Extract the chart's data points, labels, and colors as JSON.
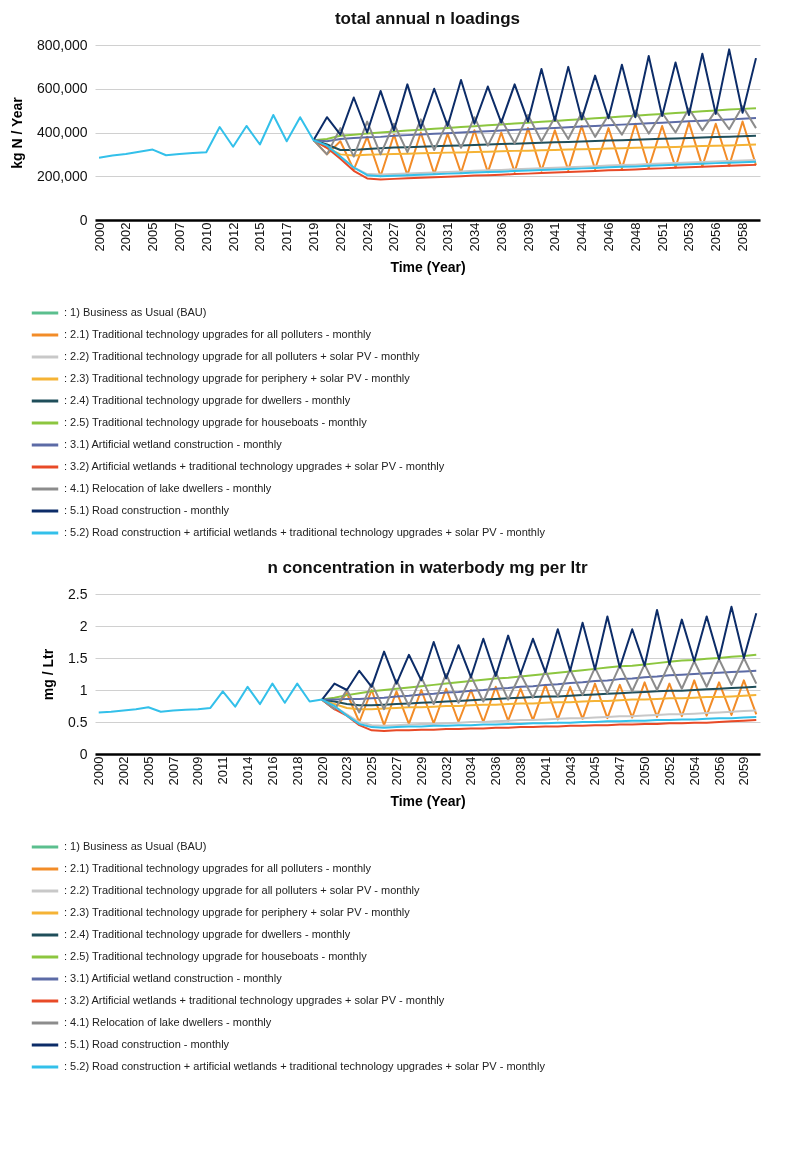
{
  "chart_data": [
    {
      "type": "line",
      "title": "total annual n loadings",
      "xlabel": "Time (Year)",
      "ylabel": "kg N / Year",
      "legend": "bottom",
      "grid": "y",
      "categories": [
        "2000",
        null,
        "2002",
        null,
        "2005",
        null,
        "2007",
        null,
        "2010",
        null,
        "2012",
        null,
        "2015",
        null,
        "2017",
        null,
        "2019",
        null,
        "2022",
        null,
        "2024",
        null,
        "2027",
        null,
        "2029",
        null,
        "2031",
        null,
        "2034",
        null,
        "2036",
        null,
        "2039",
        null,
        "2041",
        null,
        "2044",
        null,
        "2046",
        null,
        "2048",
        null,
        "2051",
        null,
        "2053",
        null,
        "2056",
        null,
        "2058",
        null
      ],
      "ylim": [
        0,
        800000
      ],
      "yticks": [
        {
          "value": 0,
          "label": "0"
        },
        {
          "value": 200000,
          "label": "200,000"
        },
        {
          "value": 400000,
          "label": "400,000"
        },
        {
          "value": 600000,
          "label": "600,000"
        },
        {
          "value": 800000,
          "label": "800,000"
        }
      ],
      "series": [
        {
          "name": ": 1) Business as Usual (BAU)",
          "color": "#5bbf8e",
          "values": [
            null,
            null,
            null,
            null,
            null,
            null,
            null,
            null,
            null,
            null,
            null,
            null,
            null,
            null,
            null,
            null,
            null,
            null,
            null,
            null,
            null,
            null,
            null,
            null,
            null,
            null,
            null,
            null,
            null,
            null,
            null,
            null,
            null,
            null,
            null,
            null,
            null,
            null,
            null,
            null,
            null,
            null,
            null,
            null,
            null,
            null,
            null,
            null,
            null,
            null
          ]
        },
        {
          "name": ": 2.1) Traditional technology upgrades for all polluters - monthly",
          "color": "#f28c28",
          "values": [
            null,
            null,
            null,
            null,
            null,
            null,
            null,
            null,
            null,
            null,
            null,
            null,
            null,
            null,
            null,
            null,
            365000,
            300000,
            360000,
            230000,
            380000,
            200000,
            390000,
            205000,
            400000,
            210000,
            395000,
            215000,
            410000,
            218000,
            400000,
            220000,
            420000,
            225000,
            410000,
            228000,
            430000,
            232000,
            420000,
            235000,
            440000,
            238000,
            430000,
            240000,
            445000,
            245000,
            440000,
            248000,
            450000,
            250000
          ]
        },
        {
          "name": ": 2.2) Traditional technology upgrade for all polluters + solar PV - monthly",
          "color": "#c8c8c8",
          "values": [
            null,
            null,
            null,
            null,
            null,
            null,
            null,
            null,
            null,
            null,
            null,
            null,
            null,
            null,
            null,
            null,
            365000,
            335000,
            290000,
            240000,
            210000,
            208000,
            210000,
            213000,
            215000,
            217000,
            220000,
            222000,
            225000,
            227000,
            229000,
            232000,
            234000,
            237000,
            239000,
            241000,
            244000,
            246000,
            249000,
            251000,
            253000,
            256000,
            258000,
            261000,
            263000,
            265000,
            268000,
            270000,
            272000,
            274000
          ]
        },
        {
          "name": ": 2.3) Traditional technology upgrade for periphery + solar PV - monthly",
          "color": "#f5b335",
          "values": [
            null,
            null,
            null,
            null,
            null,
            null,
            null,
            null,
            null,
            null,
            null,
            null,
            null,
            null,
            null,
            null,
            365000,
            330000,
            300000,
            295000,
            298000,
            300000,
            302000,
            303000,
            305000,
            306000,
            308000,
            309000,
            311000,
            312000,
            314000,
            316000,
            317000,
            319000,
            320000,
            322000,
            323000,
            325000,
            327000,
            328000,
            330000,
            331000,
            333000,
            334000,
            336000,
            338000,
            339000,
            341000,
            343000,
            345000
          ]
        },
        {
          "name": ": 2.4) Traditional technology upgrade for dwellers - monthly",
          "color": "#1f4e5a",
          "values": [
            null,
            null,
            null,
            null,
            null,
            null,
            null,
            null,
            null,
            null,
            null,
            null,
            null,
            null,
            null,
            null,
            365000,
            345000,
            320000,
            320000,
            325000,
            328000,
            331000,
            333000,
            335000,
            337000,
            339000,
            341000,
            343000,
            345000,
            347000,
            349000,
            351000,
            353000,
            355000,
            357000,
            359000,
            361000,
            363000,
            365000,
            367000,
            369000,
            371000,
            373000,
            375000,
            377000,
            379000,
            381000,
            383000,
            385000
          ]
        },
        {
          "name": ": 2.5) Traditional technology upgrade for houseboats - monthly",
          "color": "#8cc63f",
          "values": [
            null,
            null,
            null,
            null,
            null,
            null,
            null,
            null,
            null,
            null,
            null,
            null,
            null,
            null,
            null,
            null,
            365000,
            370000,
            385000,
            390000,
            395000,
            400000,
            405000,
            409000,
            413000,
            417000,
            421000,
            425000,
            429000,
            433000,
            437000,
            441000,
            445000,
            449000,
            453000,
            457000,
            461000,
            465000,
            469000,
            473000,
            477000,
            481000,
            485000,
            489000,
            493000,
            497000,
            501000,
            505000,
            508000,
            511000
          ]
        },
        {
          "name": ": 3.1) Artificial wetland construction - monthly",
          "color": "#5c6ba6",
          "values": [
            null,
            null,
            null,
            null,
            null,
            null,
            null,
            null,
            null,
            null,
            null,
            null,
            null,
            null,
            null,
            null,
            365000,
            360000,
            370000,
            375000,
            378000,
            380000,
            385000,
            388000,
            391000,
            394000,
            397000,
            400000,
            403000,
            406000,
            409000,
            412000,
            415000,
            418000,
            421000,
            424000,
            427000,
            430000,
            433000,
            436000,
            439000,
            442000,
            445000,
            448000,
            451000,
            454000,
            457000,
            460000,
            463000,
            466000
          ]
        },
        {
          "name": ": 3.2) Artificial wetlands + traditional technology upgrades + solar PV - monthly",
          "color": "#e84a27",
          "values": [
            null,
            null,
            null,
            null,
            null,
            null,
            null,
            null,
            null,
            null,
            null,
            null,
            null,
            null,
            null,
            null,
            365000,
            330000,
            280000,
            225000,
            190000,
            185000,
            188000,
            191000,
            193000,
            195000,
            198000,
            200000,
            203000,
            205000,
            207000,
            210000,
            212000,
            215000,
            217000,
            219000,
            222000,
            224000,
            227000,
            229000,
            231000,
            234000,
            236000,
            239000,
            241000,
            243000,
            246000,
            248000,
            250000,
            252000
          ]
        },
        {
          "name": ": 4.1) Relocation of lake dwellers - monthly",
          "color": "#8c8c8c",
          "values": [
            null,
            null,
            null,
            null,
            null,
            null,
            null,
            null,
            null,
            null,
            null,
            null,
            null,
            null,
            null,
            null,
            365000,
            300000,
            420000,
            290000,
            450000,
            300000,
            440000,
            310000,
            460000,
            320000,
            450000,
            330000,
            470000,
            340000,
            460000,
            350000,
            480000,
            360000,
            470000,
            370000,
            490000,
            380000,
            480000,
            390000,
            500000,
            395000,
            490000,
            400000,
            510000,
            410000,
            500000,
            415000,
            520000,
            420000
          ]
        },
        {
          "name": ": 5.1) Road construction - monthly",
          "color": "#0c2c68",
          "values": [
            null,
            null,
            null,
            null,
            null,
            null,
            null,
            null,
            null,
            null,
            null,
            null,
            null,
            null,
            null,
            null,
            365000,
            470000,
            390000,
            560000,
            400000,
            590000,
            410000,
            620000,
            420000,
            600000,
            430000,
            640000,
            440000,
            610000,
            445000,
            620000,
            450000,
            690000,
            455000,
            700000,
            460000,
            660000,
            465000,
            710000,
            470000,
            750000,
            475000,
            720000,
            480000,
            760000,
            485000,
            780000,
            490000,
            740000
          ]
        },
        {
          "name": ": 5.2) Road construction + artificial wetlands + traditional technology upgrades + solar PV - monthly",
          "color": "#33c0ea",
          "values": [
            285000,
            295000,
            302000,
            312000,
            322000,
            296000,
            302000,
            306000,
            310000,
            425000,
            335000,
            430000,
            345000,
            480000,
            360000,
            470000,
            365000,
            340000,
            290000,
            240000,
            205000,
            200000,
            202000,
            205000,
            207000,
            209000,
            212000,
            214000,
            217000,
            219000,
            221000,
            224000,
            226000,
            229000,
            231000,
            233000,
            236000,
            238000,
            241000,
            243000,
            245000,
            248000,
            250000,
            253000,
            255000,
            257000,
            260000,
            262000,
            264000,
            266000
          ]
        }
      ]
    },
    {
      "type": "line",
      "title": "n concentration in waterbody mg per ltr",
      "xlabel": "Time (Year)",
      "ylabel": "mg / Ltr",
      "legend": "bottom",
      "grid": "y",
      "categories": [
        "2000",
        null,
        "2002",
        null,
        "2005",
        null,
        "2007",
        null,
        "2009",
        null,
        "2011",
        null,
        "2014",
        null,
        "2016",
        null,
        "2018",
        null,
        "2020",
        null,
        "2023",
        null,
        "2025",
        null,
        "2027",
        null,
        "2029",
        null,
        "2032",
        null,
        "2034",
        null,
        "2036",
        null,
        "2038",
        null,
        "2041",
        null,
        "2043",
        null,
        "2045",
        null,
        "2047",
        null,
        "2050",
        null,
        "2052",
        null,
        "2054",
        null,
        "2056",
        null,
        "2059",
        null
      ],
      "ylim": [
        0,
        2.5
      ],
      "yticks": [
        0,
        0.5,
        1,
        1.5,
        2,
        2.5
      ],
      "series": [
        {
          "name": ": 1) Business as Usual (BAU)",
          "color": "#5bbf8e",
          "values": [
            null,
            null,
            null,
            null,
            null,
            null,
            null,
            null,
            null,
            null,
            null,
            null,
            null,
            null,
            null,
            null,
            null,
            null,
            null,
            null,
            null,
            null,
            null,
            null,
            null,
            null,
            null,
            null,
            null,
            null,
            null,
            null,
            null,
            null,
            null,
            null,
            null,
            null,
            null,
            null,
            null,
            null,
            null,
            null,
            null,
            null,
            null,
            null,
            null,
            null,
            null,
            null,
            null,
            null
          ]
        },
        {
          "name": ": 2.1) Traditional technology upgrades for all polluters - monthly",
          "color": "#f28c28",
          "values": [
            null,
            null,
            null,
            null,
            null,
            null,
            null,
            null,
            null,
            null,
            null,
            null,
            null,
            null,
            null,
            null,
            null,
            null,
            0.85,
            0.7,
            0.95,
            0.5,
            1.0,
            0.45,
            0.98,
            0.47,
            1.0,
            0.48,
            1.02,
            0.5,
            1.0,
            0.5,
            1.05,
            0.52,
            1.02,
            0.53,
            1.08,
            0.54,
            1.05,
            0.55,
            1.1,
            0.56,
            1.08,
            0.57,
            1.12,
            0.58,
            1.1,
            0.59,
            1.15,
            0.6,
            1.12,
            0.61,
            1.15,
            0.62
          ]
        },
        {
          "name": ": 2.2) Traditional technology upgrade for all polluters + solar PV - monthly",
          "color": "#c8c8c8",
          "values": [
            null,
            null,
            null,
            null,
            null,
            null,
            null,
            null,
            null,
            null,
            null,
            null,
            null,
            null,
            null,
            null,
            null,
            null,
            0.85,
            0.74,
            0.62,
            0.5,
            0.45,
            0.44,
            0.45,
            0.46,
            0.47,
            0.47,
            0.48,
            0.49,
            0.5,
            0.5,
            0.51,
            0.52,
            0.53,
            0.53,
            0.54,
            0.55,
            0.56,
            0.56,
            0.57,
            0.58,
            0.59,
            0.59,
            0.6,
            0.61,
            0.62,
            0.62,
            0.63,
            0.64,
            0.65,
            0.66,
            0.67,
            0.68
          ]
        },
        {
          "name": ": 2.3) Traditional technology upgrade for periphery + solar PV - monthly",
          "color": "#f5b335",
          "values": [
            null,
            null,
            null,
            null,
            null,
            null,
            null,
            null,
            null,
            null,
            null,
            null,
            null,
            null,
            null,
            null,
            null,
            null,
            0.85,
            0.78,
            0.72,
            0.7,
            0.7,
            0.71,
            0.72,
            0.73,
            0.73,
            0.74,
            0.75,
            0.75,
            0.76,
            0.77,
            0.77,
            0.78,
            0.79,
            0.79,
            0.8,
            0.81,
            0.81,
            0.82,
            0.83,
            0.83,
            0.84,
            0.85,
            0.85,
            0.86,
            0.87,
            0.87,
            0.88,
            0.89,
            0.89,
            0.9,
            0.91,
            0.92
          ]
        },
        {
          "name": ": 2.4) Traditional technology upgrade for dwellers - monthly",
          "color": "#1f4e5a",
          "values": [
            null,
            null,
            null,
            null,
            null,
            null,
            null,
            null,
            null,
            null,
            null,
            null,
            null,
            null,
            null,
            null,
            null,
            null,
            0.85,
            0.82,
            0.78,
            0.76,
            0.76,
            0.77,
            0.78,
            0.79,
            0.8,
            0.81,
            0.82,
            0.83,
            0.84,
            0.85,
            0.86,
            0.87,
            0.88,
            0.89,
            0.9,
            0.9,
            0.91,
            0.92,
            0.93,
            0.94,
            0.95,
            0.96,
            0.97,
            0.98,
            0.99,
            0.99,
            1.0,
            1.01,
            1.02,
            1.03,
            1.04,
            1.05
          ]
        },
        {
          "name": ": 2.5) Traditional technology upgrade for houseboats - monthly",
          "color": "#8cc63f",
          "values": [
            null,
            null,
            null,
            null,
            null,
            null,
            null,
            null,
            null,
            null,
            null,
            null,
            null,
            null,
            null,
            null,
            null,
            null,
            0.85,
            0.88,
            0.92,
            0.95,
            0.98,
            1.0,
            1.02,
            1.04,
            1.06,
            1.08,
            1.1,
            1.12,
            1.14,
            1.16,
            1.18,
            1.19,
            1.21,
            1.23,
            1.25,
            1.27,
            1.29,
            1.31,
            1.33,
            1.35,
            1.37,
            1.38,
            1.4,
            1.42,
            1.44,
            1.46,
            1.47,
            1.49,
            1.5,
            1.52,
            1.53,
            1.55
          ]
        },
        {
          "name": ": 3.1) Artificial wetland construction - monthly",
          "color": "#5c6ba6",
          "values": [
            null,
            null,
            null,
            null,
            null,
            null,
            null,
            null,
            null,
            null,
            null,
            null,
            null,
            null,
            null,
            null,
            null,
            null,
            0.85,
            0.85,
            0.86,
            0.86,
            0.87,
            0.88,
            0.9,
            0.91,
            0.93,
            0.94,
            0.96,
            0.97,
            0.99,
            1.0,
            1.02,
            1.03,
            1.05,
            1.06,
            1.08,
            1.09,
            1.11,
            1.12,
            1.14,
            1.15,
            1.17,
            1.18,
            1.2,
            1.21,
            1.23,
            1.24,
            1.25,
            1.26,
            1.27,
            1.28,
            1.29,
            1.3
          ]
        },
        {
          "name": ": 3.2) Artificial wetlands + traditional technology upgrades + solar PV - monthly",
          "color": "#e84a27",
          "values": [
            null,
            null,
            null,
            null,
            null,
            null,
            null,
            null,
            null,
            null,
            null,
            null,
            null,
            null,
            null,
            null,
            null,
            null,
            0.85,
            0.7,
            0.6,
            0.45,
            0.37,
            0.36,
            0.37,
            0.37,
            0.38,
            0.38,
            0.39,
            0.39,
            0.4,
            0.4,
            0.41,
            0.41,
            0.42,
            0.42,
            0.43,
            0.43,
            0.44,
            0.44,
            0.45,
            0.45,
            0.46,
            0.46,
            0.47,
            0.47,
            0.48,
            0.48,
            0.49,
            0.49,
            0.5,
            0.51,
            0.52,
            0.53
          ]
        },
        {
          "name": ": 4.1) Relocation of lake dwellers - monthly",
          "color": "#8c8c8c",
          "values": [
            null,
            null,
            null,
            null,
            null,
            null,
            null,
            null,
            null,
            null,
            null,
            null,
            null,
            null,
            null,
            null,
            null,
            null,
            0.85,
            0.7,
            1.0,
            0.65,
            1.1,
            0.7,
            1.15,
            0.75,
            1.2,
            0.78,
            1.25,
            0.8,
            1.22,
            0.82,
            1.28,
            0.85,
            1.25,
            0.88,
            1.3,
            0.9,
            1.32,
            0.92,
            1.35,
            0.95,
            1.38,
            0.98,
            1.4,
            1.0,
            1.42,
            1.02,
            1.45,
            1.05,
            1.48,
            1.08,
            1.5,
            1.1
          ]
        },
        {
          "name": ": 5.1) Road construction - monthly",
          "color": "#0c2c68",
          "values": [
            null,
            null,
            null,
            null,
            null,
            null,
            null,
            null,
            null,
            null,
            null,
            null,
            null,
            null,
            null,
            null,
            null,
            null,
            0.85,
            1.1,
            1.0,
            1.3,
            1.05,
            1.6,
            1.1,
            1.55,
            1.15,
            1.75,
            1.18,
            1.7,
            1.2,
            1.8,
            1.22,
            1.85,
            1.25,
            1.8,
            1.28,
            1.95,
            1.3,
            2.05,
            1.32,
            2.15,
            1.35,
            1.95,
            1.38,
            2.25,
            1.4,
            2.1,
            1.45,
            2.15,
            1.48,
            2.3,
            1.5,
            2.2
          ]
        },
        {
          "name": ": 5.2) Road construction + artificial wetlands + traditional technology upgrades + solar PV - monthly",
          "color": "#33c0ea",
          "values": [
            0.65,
            0.66,
            0.68,
            0.7,
            0.73,
            0.66,
            0.68,
            0.69,
            0.7,
            0.72,
            0.98,
            0.74,
            1.05,
            0.78,
            1.1,
            0.8,
            1.1,
            0.82,
            0.85,
            0.75,
            0.6,
            0.47,
            0.42,
            0.41,
            0.42,
            0.43,
            0.43,
            0.44,
            0.44,
            0.45,
            0.45,
            0.46,
            0.46,
            0.47,
            0.47,
            0.48,
            0.48,
            0.49,
            0.49,
            0.5,
            0.5,
            0.51,
            0.51,
            0.52,
            0.52,
            0.53,
            0.53,
            0.54,
            0.54,
            0.55,
            0.56,
            0.56,
            0.57,
            0.58
          ]
        }
      ]
    }
  ]
}
